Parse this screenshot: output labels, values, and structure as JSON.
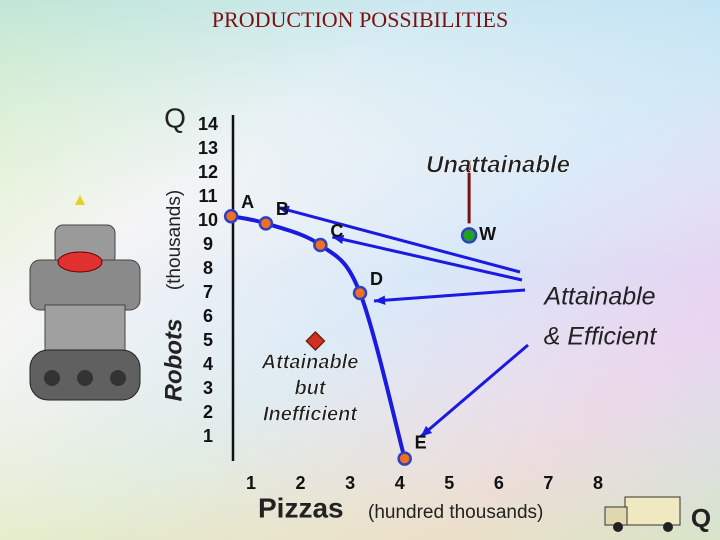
{
  "chart_data": {
    "type": "line",
    "title": "PRODUCTION POSSIBILITIES",
    "y_label_main": "Robots",
    "y_label_unit": "(thousands)",
    "x_label_main": "Pizzas",
    "x_label_unit": "(hundred thousands)",
    "y_axis_letter": "Q",
    "x_axis_letter": "Q",
    "xlim": [
      0,
      8
    ],
    "ylim": [
      0,
      14
    ],
    "xticks": [
      1,
      2,
      3,
      4,
      5,
      6,
      7,
      8
    ],
    "yticks": [
      1,
      2,
      3,
      4,
      5,
      6,
      7,
      8,
      9,
      10,
      11,
      12,
      13,
      14
    ],
    "x": [
      0.6,
      1.3,
      2.4,
      3.2,
      4.1
    ],
    "series": [
      {
        "color": "#1a1ae0",
        "values": [
          10.2,
          9.9,
          9.0,
          7.0,
          0.1
        ],
        "point_labels": [
          "A",
          "B",
          "C",
          "D",
          "E"
        ]
      }
    ],
    "extra_points": [
      {
        "label": "W",
        "x": 5.4,
        "y": 9.4,
        "color": "#22a022"
      },
      {
        "x": 2.3,
        "y": 5.0,
        "color": "#d03020"
      }
    ],
    "annotations": {
      "unattainable": "Unattainable",
      "efficient": [
        "Attainable",
        "& Efficient"
      ],
      "inefficient": [
        "Attainable",
        "but",
        "Inefficient"
      ]
    }
  }
}
